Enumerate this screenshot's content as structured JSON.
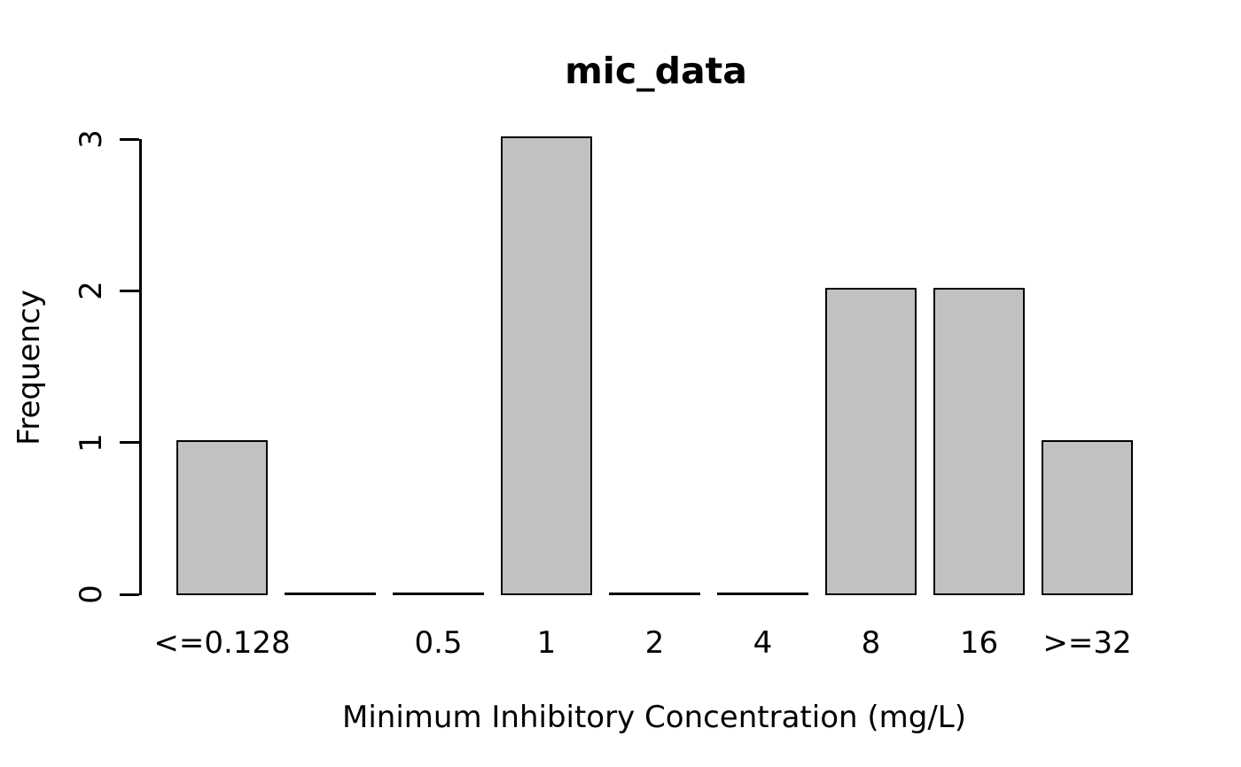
{
  "chart_data": {
    "type": "bar",
    "title": "mic_data",
    "xlabel": "Minimum Inhibitory Concentration (mg/L)",
    "ylabel": "Frequency",
    "categories": [
      "<=0.128",
      "",
      "0.5",
      "1",
      "2",
      "4",
      "8",
      "16",
      ">=32"
    ],
    "values": [
      1,
      0,
      0,
      3,
      0,
      0,
      2,
      2,
      1
    ],
    "yticks": [
      0,
      1,
      2,
      3
    ],
    "ylim": [
      0,
      3
    ],
    "grid": false,
    "legend": false,
    "bar_fill": "#c1c1c1",
    "bar_border": "#000000",
    "axis_color": "#000000",
    "background": "#ffffff"
  }
}
